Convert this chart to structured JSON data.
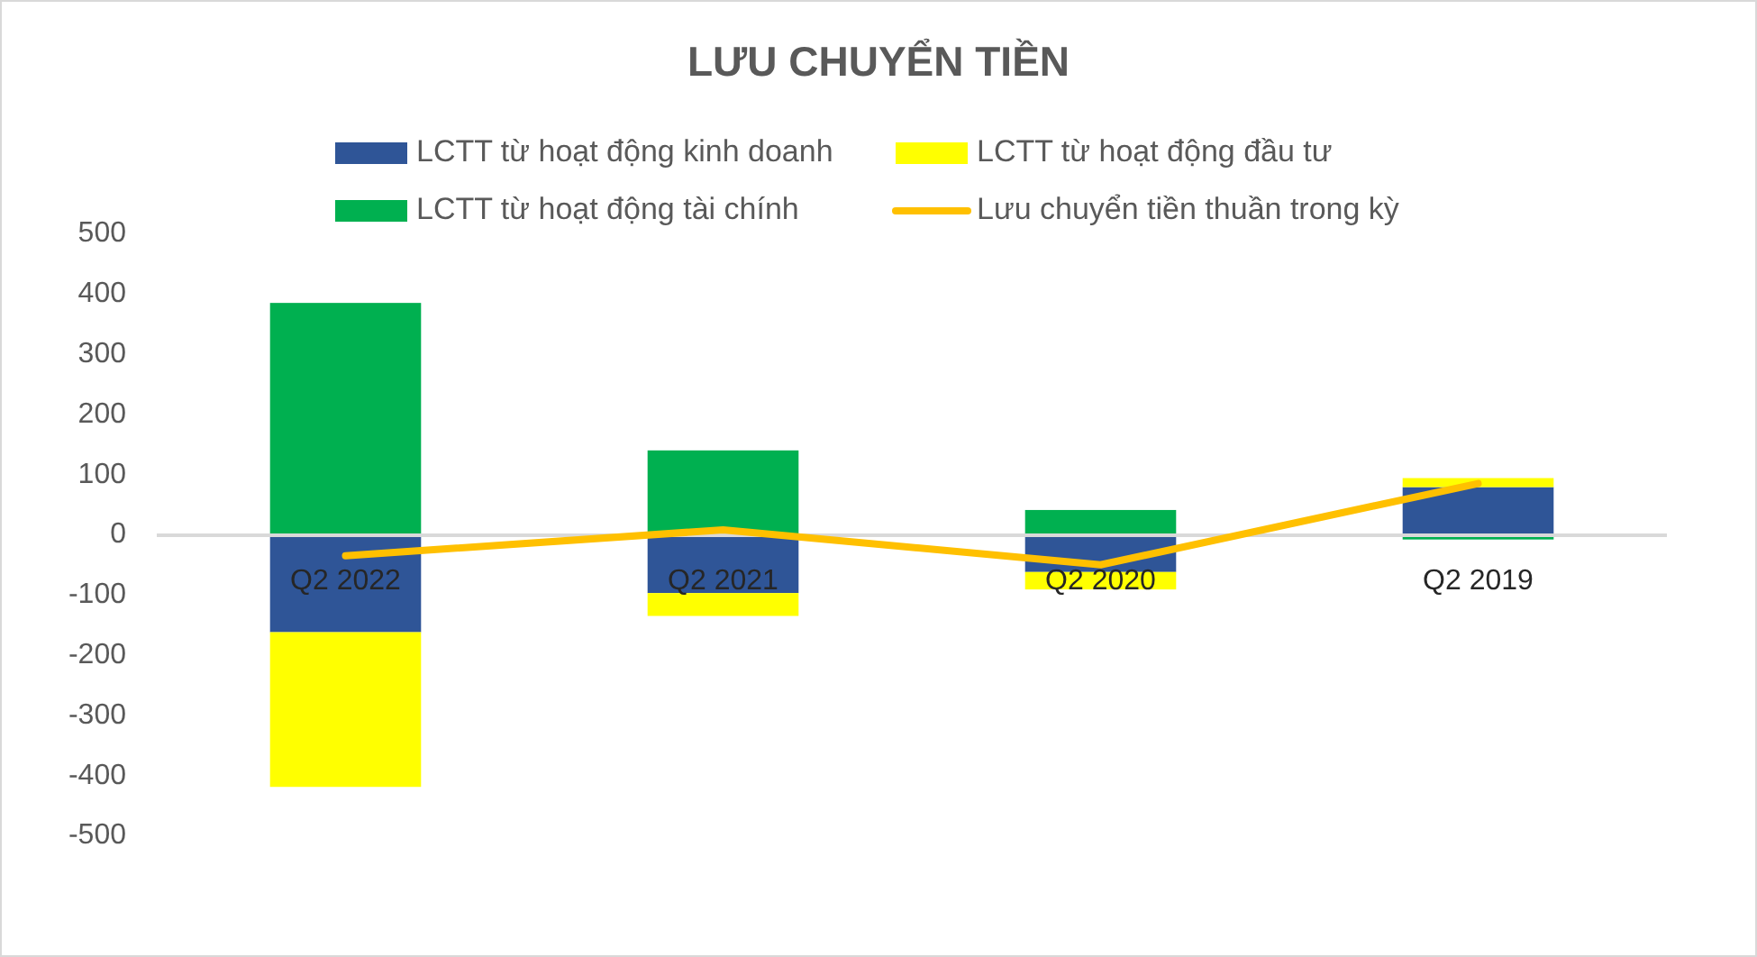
{
  "chart_data": {
    "type": "bar",
    "title": "LƯU CHUYỂN TIỀN",
    "categories": [
      "Q2 2022",
      "Q2 2021",
      "Q2 2020",
      "Q2 2019"
    ],
    "stacked": true,
    "series": [
      {
        "name": "LCTT từ hoạt động kinh doanh",
        "color": "#2f5597",
        "values": [
          -161,
          -96,
          -61,
          80
        ]
      },
      {
        "name": "LCTT từ hoạt động đầu tư",
        "color": "#ffff00",
        "values": [
          -257,
          -38,
          -29,
          15
        ]
      },
      {
        "name": "LCTT từ hoạt động tài chính",
        "color": "#00b050",
        "values": [
          386,
          141,
          42,
          -7
        ]
      },
      {
        "name": "Lưu chuyển tiền thuần trong kỳ",
        "type": "line",
        "color": "#ffc000",
        "values": [
          -34,
          9,
          -49,
          86
        ]
      }
    ],
    "ylim": [
      -500,
      500
    ],
    "yticks": [
      -500,
      -400,
      -300,
      -200,
      -100,
      0,
      100,
      200,
      300,
      400,
      500
    ],
    "grid": false,
    "legend": "top"
  }
}
